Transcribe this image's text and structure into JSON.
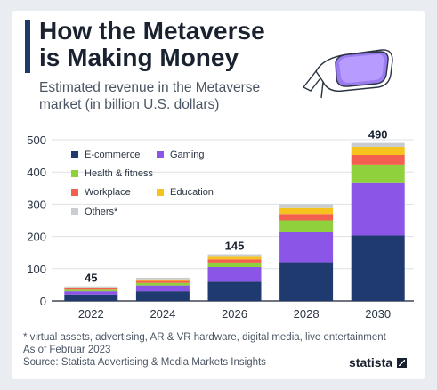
{
  "header": {
    "title_line1": "How the Metaverse",
    "title_line2": "is Making Money",
    "subtitle": "Estimated revenue in the Metaverse market (in billion U.S. dollars)"
  },
  "footer": {
    "note": "* virtual assets, advertising, AR & VR hardware, digital media, live entertainment",
    "date": "As of Februar 2023",
    "source": "Source: Statista Advertising & Media Markets Insights",
    "brand": "statista"
  },
  "colors": {
    "E-commerce": "#1f3a6e",
    "Gaming": "#8b55e8",
    "Health & fitness": "#8fd13c",
    "Workplace": "#f4604f",
    "Education": "#f6c21d",
    "Others*": "#c9cdd2"
  },
  "chart_data": {
    "type": "bar",
    "stacked": true,
    "categories": [
      "2022",
      "2024",
      "2026",
      "2028",
      "2030"
    ],
    "ylim": [
      0,
      500
    ],
    "yticks": [
      0,
      100,
      200,
      300,
      400,
      500
    ],
    "grid": true,
    "legend_position": "top-left",
    "series": [
      {
        "name": "E-commerce",
        "values": [
          20,
          30,
          60,
          120,
          203
        ]
      },
      {
        "name": "Gaming",
        "values": [
          10,
          18,
          45,
          95,
          165
        ]
      },
      {
        "name": "Health & fitness",
        "values": [
          5,
          8,
          14,
          35,
          55
        ]
      },
      {
        "name": "Workplace",
        "values": [
          4,
          6,
          10,
          20,
          30
        ]
      },
      {
        "name": "Education",
        "values": [
          3,
          5,
          8,
          18,
          25
        ]
      },
      {
        "name": "Others*",
        "values": [
          3,
          5,
          8,
          12,
          12
        ]
      }
    ],
    "total_labels": [
      {
        "category": "2022",
        "text": "45",
        "value": 45
      },
      {
        "category": "2026",
        "text": "145",
        "value": 145
      },
      {
        "category": "2030",
        "text": "490",
        "value": 490
      }
    ]
  }
}
